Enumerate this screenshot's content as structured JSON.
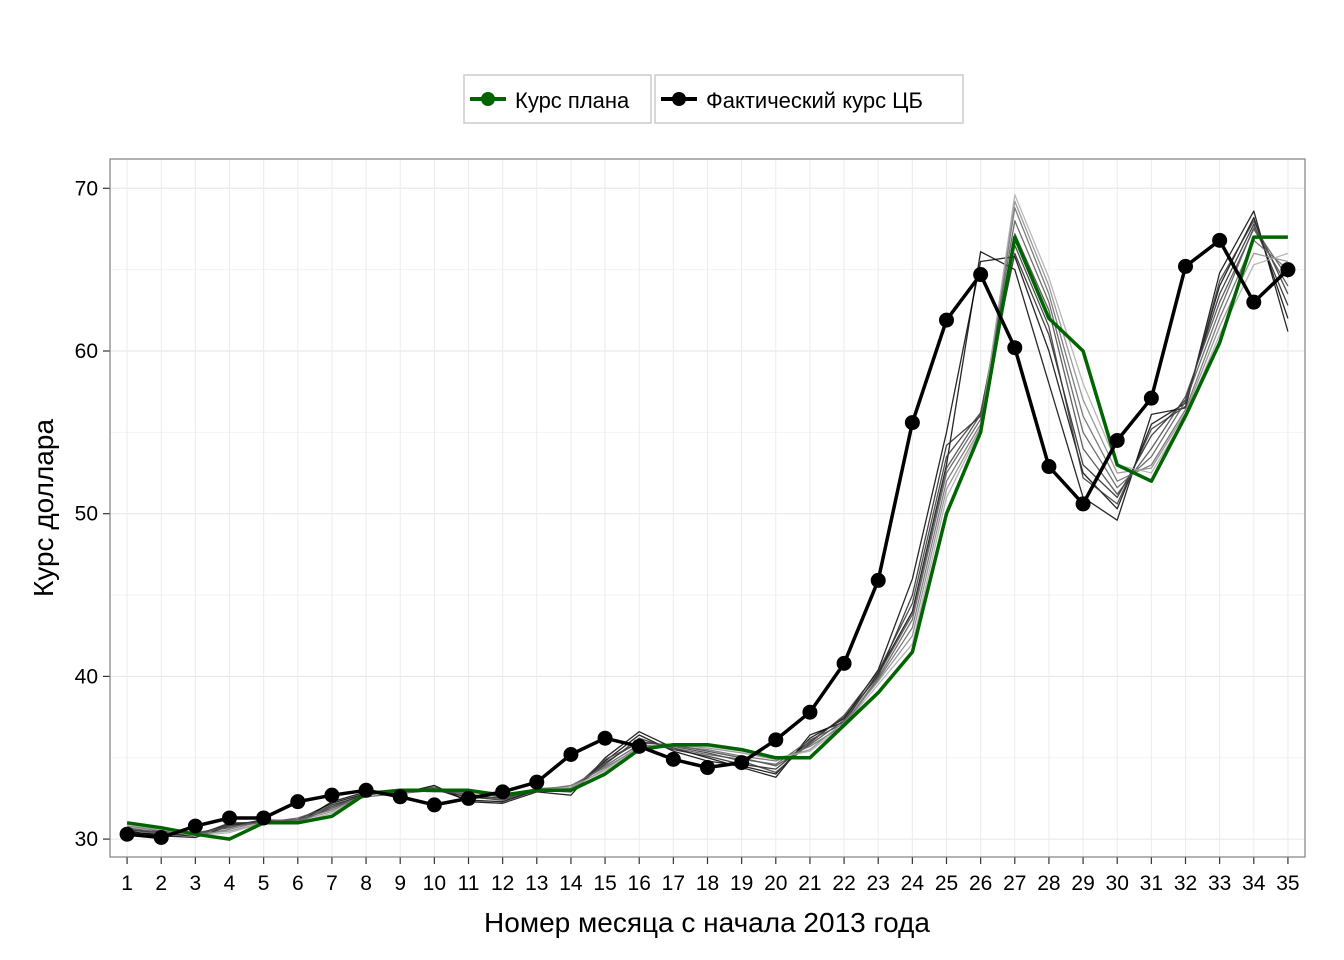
{
  "chart_data": {
    "type": "line",
    "title": "",
    "xlabel": "Номер месяца с начала 2013 года",
    "ylabel": "Курс доллара",
    "x": [
      1,
      2,
      3,
      4,
      5,
      6,
      7,
      8,
      9,
      10,
      11,
      12,
      13,
      14,
      15,
      16,
      17,
      18,
      19,
      20,
      21,
      22,
      23,
      24,
      25,
      26,
      27,
      28,
      29,
      30,
      31,
      32,
      33,
      34,
      35
    ],
    "xlim": [
      0.5,
      35.5
    ],
    "ylim": [
      28.9,
      71.8
    ],
    "yticks": [
      30,
      40,
      50,
      60,
      70
    ],
    "grid": true,
    "legend_position": "top",
    "series": [
      {
        "name": "Курс плана",
        "color": "#006400",
        "markers": false,
        "values": [
          31.0,
          30.7,
          30.3,
          30.0,
          31.0,
          31.0,
          31.4,
          32.8,
          33.0,
          33.0,
          33.0,
          32.7,
          33.0,
          33.0,
          34.0,
          35.5,
          35.8,
          35.8,
          35.5,
          35.0,
          35.0,
          37.0,
          39.0,
          41.5,
          50.0,
          55.0,
          67.0,
          62.0,
          60.0,
          53.0,
          52.0,
          56.0,
          60.5,
          67.0,
          67.0
        ]
      },
      {
        "name": "Фактический курс ЦБ",
        "color": "#000000",
        "markers": true,
        "values": [
          30.3,
          30.1,
          30.8,
          31.3,
          31.3,
          32.3,
          32.7,
          33.0,
          32.6,
          32.1,
          32.5,
          32.9,
          33.5,
          35.2,
          36.2,
          35.7,
          34.9,
          34.4,
          34.7,
          36.1,
          37.8,
          40.8,
          45.9,
          55.6,
          61.9,
          64.7,
          60.2,
          52.9,
          50.6,
          54.5,
          57.1,
          65.2,
          66.8,
          63.0,
          65.0
        ]
      }
    ],
    "forecast_lines": [
      {
        "color": "#000000",
        "values": [
          30.5,
          30.2,
          30.1,
          30.8,
          31.2,
          31.0,
          32.3,
          32.9,
          32.8,
          33.3,
          32.3,
          32.2,
          32.9,
          32.7,
          35.0,
          36.6,
          35.6,
          35.0,
          34.4,
          33.8,
          36.4,
          37.2,
          40.2,
          44.0,
          53.0,
          66.1,
          65.0,
          58.0,
          51.0,
          49.6,
          56.1,
          56.5,
          64.8,
          68.6,
          61.2
        ]
      },
      {
        "color": "#000000",
        "values": [
          30.4,
          30.3,
          30.2,
          30.9,
          31.1,
          31.2,
          32.2,
          32.8,
          32.9,
          33.1,
          32.4,
          32.3,
          33.0,
          32.9,
          34.8,
          36.4,
          35.4,
          34.8,
          34.5,
          34.0,
          36.2,
          37.4,
          40.4,
          46.0,
          55.0,
          65.5,
          65.8,
          60.0,
          52.5,
          50.3,
          55.5,
          56.8,
          64.0,
          68.2,
          62.0
        ]
      },
      {
        "color": "#222222",
        "values": [
          30.6,
          30.4,
          30.2,
          31.0,
          31.0,
          31.1,
          32.1,
          32.7,
          33.0,
          33.0,
          32.6,
          32.4,
          33.0,
          33.0,
          34.6,
          36.2,
          35.5,
          35.1,
          34.6,
          34.3,
          36.0,
          37.5,
          40.0,
          45.0,
          54.2,
          56.0,
          66.0,
          61.0,
          53.0,
          51.0,
          54.8,
          57.0,
          63.5,
          67.8,
          62.8
        ]
      },
      {
        "color": "#333333",
        "values": [
          30.5,
          30.5,
          30.3,
          30.9,
          31.1,
          31.0,
          32.0,
          32.8,
          32.9,
          33.2,
          32.5,
          32.6,
          32.9,
          33.1,
          34.7,
          36.0,
          35.7,
          35.3,
          34.8,
          34.1,
          35.9,
          37.6,
          40.3,
          44.5,
          53.5,
          56.2,
          66.5,
          61.5,
          52.2,
          50.6,
          55.2,
          56.6,
          64.3,
          68.0,
          63.5
        ]
      },
      {
        "color": "#444444",
        "values": [
          30.6,
          30.3,
          30.4,
          30.7,
          31.2,
          31.1,
          31.9,
          32.7,
          33.0,
          33.1,
          32.7,
          32.5,
          33.0,
          33.0,
          34.9,
          35.9,
          35.8,
          35.4,
          35.0,
          34.5,
          35.8,
          37.3,
          40.1,
          43.8,
          52.8,
          56.1,
          67.2,
          62.5,
          54.0,
          51.2,
          54.0,
          57.2,
          63.0,
          67.5,
          64.0
        ]
      },
      {
        "color": "#555555",
        "values": [
          30.7,
          30.4,
          30.3,
          30.8,
          31.0,
          31.3,
          32.0,
          32.6,
          32.8,
          33.0,
          32.8,
          32.4,
          33.1,
          33.2,
          34.5,
          35.8,
          35.6,
          35.2,
          34.9,
          34.6,
          36.1,
          37.1,
          39.9,
          43.5,
          52.5,
          55.8,
          68.0,
          63.0,
          55.0,
          51.6,
          53.5,
          56.9,
          62.5,
          67.6,
          64.5
        ]
      },
      {
        "color": "#666666",
        "values": [
          30.8,
          30.5,
          30.2,
          30.6,
          31.1,
          31.2,
          31.8,
          32.7,
          33.0,
          32.9,
          32.9,
          32.6,
          33.0,
          33.3,
          34.4,
          35.6,
          35.7,
          35.5,
          35.1,
          34.8,
          35.7,
          37.0,
          39.8,
          43.0,
          52.0,
          55.5,
          68.8,
          63.5,
          56.0,
          52.0,
          53.0,
          56.4,
          62.0,
          66.8,
          65.0
        ]
      },
      {
        "color": "#888888",
        "values": [
          30.8,
          30.6,
          30.3,
          30.5,
          31.0,
          31.1,
          31.7,
          32.8,
          32.9,
          33.0,
          33.0,
          32.7,
          33.1,
          33.1,
          34.3,
          35.7,
          35.8,
          35.6,
          35.3,
          34.9,
          35.5,
          37.2,
          39.7,
          42.5,
          51.5,
          55.3,
          69.2,
          64.0,
          57.0,
          52.5,
          52.8,
          56.2,
          61.5,
          66.0,
          65.5
        ]
      },
      {
        "color": "#aaaaaa",
        "values": [
          30.9,
          30.6,
          30.2,
          30.4,
          31.0,
          31.0,
          31.6,
          32.7,
          33.0,
          33.0,
          33.0,
          32.8,
          33.0,
          33.2,
          34.2,
          35.6,
          35.8,
          35.7,
          35.4,
          35.0,
          35.4,
          37.0,
          39.5,
          42.0,
          51.0,
          55.2,
          69.6,
          64.5,
          58.0,
          53.0,
          52.5,
          56.0,
          61.0,
          65.3,
          66.0
        ]
      }
    ]
  }
}
